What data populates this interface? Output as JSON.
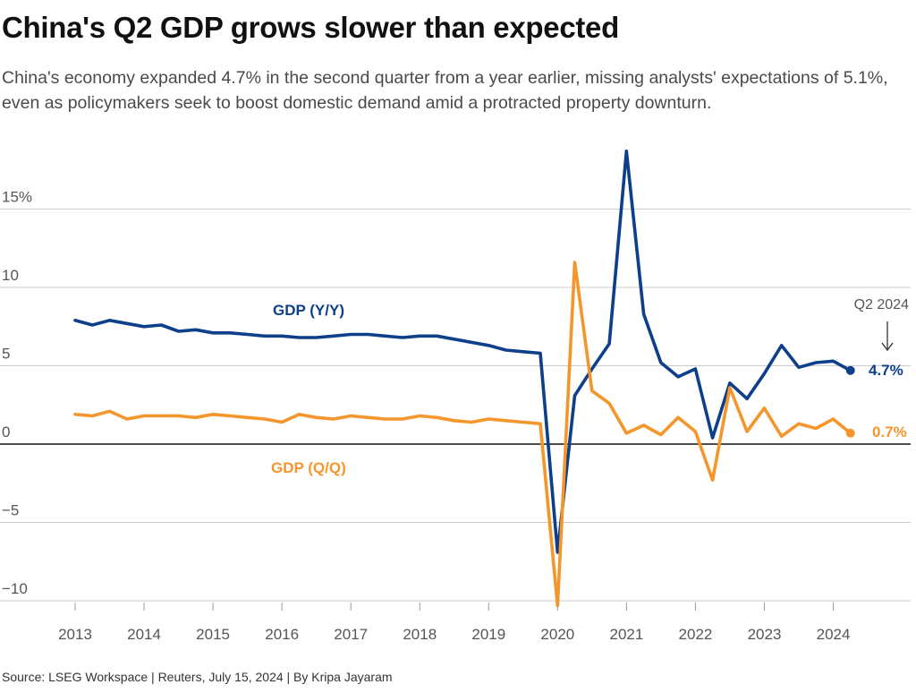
{
  "header": {
    "title": "China's Q2 GDP grows slower than expected",
    "subtitle": "China's economy expanded 4.7% in the second quarter from a year earlier, missing analysts' expectations of 5.1%, even as policymakers seek to boost domestic demand amid a protracted property downturn."
  },
  "footer": {
    "source": "Source: LSEG Workspace | Reuters, July 15, 2024 | By Kripa Jayaram"
  },
  "colors": {
    "yy": "#0d3f8a",
    "qq": "#f5962d",
    "grid": "#cccccc",
    "zero": "#111111"
  },
  "chart_data": {
    "type": "line",
    "x_quarters": [
      "2013Q1",
      "2013Q2",
      "2013Q3",
      "2013Q4",
      "2014Q1",
      "2014Q2",
      "2014Q3",
      "2014Q4",
      "2015Q1",
      "2015Q2",
      "2015Q3",
      "2015Q4",
      "2016Q1",
      "2016Q2",
      "2016Q3",
      "2016Q4",
      "2017Q1",
      "2017Q2",
      "2017Q3",
      "2017Q4",
      "2018Q1",
      "2018Q2",
      "2018Q3",
      "2018Q4",
      "2019Q1",
      "2019Q2",
      "2019Q3",
      "2019Q4",
      "2020Q1",
      "2020Q2",
      "2020Q3",
      "2020Q4",
      "2021Q1",
      "2021Q2",
      "2021Q3",
      "2021Q4",
      "2022Q1",
      "2022Q2",
      "2022Q3",
      "2022Q4",
      "2023Q1",
      "2023Q2",
      "2023Q3",
      "2023Q4",
      "2024Q1",
      "2024Q2"
    ],
    "series": [
      {
        "name": "GDP (Y/Y)",
        "values": [
          7.9,
          7.6,
          7.9,
          7.7,
          7.5,
          7.6,
          7.2,
          7.3,
          7.1,
          7.1,
          7.0,
          6.9,
          6.9,
          6.8,
          6.8,
          6.9,
          7.0,
          7.0,
          6.9,
          6.8,
          6.9,
          6.9,
          6.7,
          6.5,
          6.3,
          6.0,
          5.9,
          5.8,
          -6.9,
          3.1,
          4.8,
          6.4,
          18.7,
          8.3,
          5.2,
          4.3,
          4.8,
          0.4,
          3.9,
          2.9,
          4.5,
          6.3,
          4.9,
          5.2,
          5.3,
          4.7
        ],
        "end_label": "4.7%"
      },
      {
        "name": "GDP (Q/Q)",
        "values": [
          1.9,
          1.8,
          2.1,
          1.6,
          1.8,
          1.8,
          1.8,
          1.7,
          1.9,
          1.8,
          1.7,
          1.6,
          1.4,
          1.9,
          1.7,
          1.6,
          1.8,
          1.7,
          1.6,
          1.6,
          1.8,
          1.7,
          1.5,
          1.4,
          1.6,
          1.5,
          1.4,
          1.3,
          -10.3,
          11.6,
          3.4,
          2.6,
          0.7,
          1.2,
          0.6,
          1.7,
          0.8,
          -2.3,
          3.6,
          0.8,
          2.3,
          0.5,
          1.3,
          1.0,
          1.6,
          0.7
        ],
        "end_label": "0.7%"
      }
    ],
    "x_tick_labels": [
      "2013",
      "2014",
      "2015",
      "2016",
      "2017",
      "2018",
      "2019",
      "2020",
      "2021",
      "2022",
      "2023",
      "2024"
    ],
    "y_ticks": [
      15,
      10,
      5,
      0,
      -5,
      -10
    ],
    "y_tick_labels": [
      "15%",
      "10",
      "5",
      "0",
      "−5",
      "−10"
    ],
    "ylim": [
      -10.5,
      19
    ],
    "grid": true,
    "annotation": "Q2 2024"
  }
}
